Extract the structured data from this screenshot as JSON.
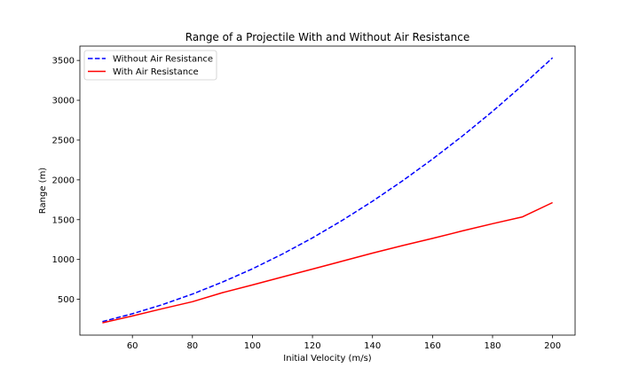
{
  "chart_data": {
    "type": "line",
    "title": "Range of a Projectile With and Without Air Resistance",
    "xlabel": "Initial Velocity (m/s)",
    "ylabel": "Range (m)",
    "xlim": [
      42.5,
      207.5
    ],
    "ylim": [
      50,
      3680
    ],
    "xticks": [
      60,
      80,
      100,
      120,
      140,
      160,
      180,
      200
    ],
    "yticks": [
      500,
      1000,
      1500,
      2000,
      2500,
      3000,
      3500
    ],
    "grid": false,
    "legend_position": "upper-left",
    "series": [
      {
        "name": "Without Air Resistance",
        "color": "#0000ff",
        "linestyle": "dashed",
        "x": [
          50,
          60,
          70,
          80,
          90,
          100,
          110,
          120,
          130,
          140,
          150,
          160,
          170,
          180,
          190,
          200
        ],
        "y": [
          220,
          318,
          433,
          565,
          716,
          883,
          1069,
          1272,
          1493,
          1731,
          1987,
          2261,
          2552,
          2861,
          3189,
          3533
        ]
      },
      {
        "name": "With Air Resistance",
        "color": "#ff0000",
        "linestyle": "solid",
        "x": [
          50,
          60,
          70,
          80,
          90,
          100,
          110,
          120,
          130,
          140,
          150,
          160,
          170,
          180,
          190,
          200
        ],
        "y": [
          205,
          290,
          382,
          470,
          583,
          680,
          780,
          880,
          980,
          1080,
          1175,
          1265,
          1360,
          1450,
          1535,
          1715
        ]
      }
    ]
  }
}
